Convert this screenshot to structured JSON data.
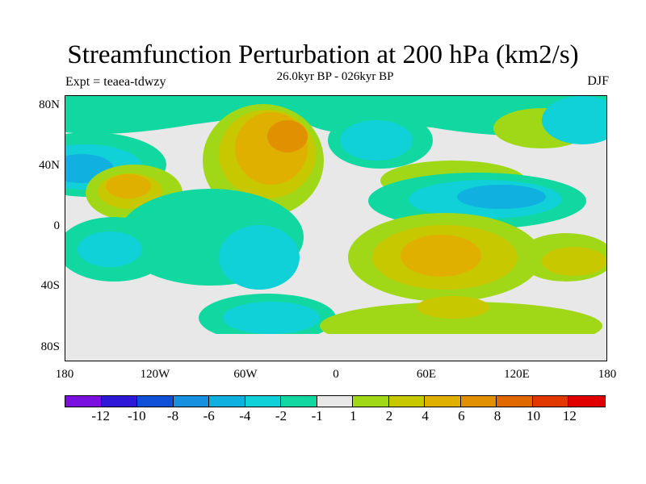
{
  "title": "Streamfunction Perturbation at 200 hPa (km2/s)",
  "subtitle": "26.0kyr BP - 026kyr BP",
  "left_label": "Expt = teaea-tdwzy",
  "right_label": "DJF",
  "lat_ticks": [
    "80N",
    "40N",
    "0",
    "40S",
    "80S"
  ],
  "lon_ticks": [
    "180",
    "120W",
    "60W",
    "0",
    "60E",
    "120E",
    "180"
  ],
  "colorbar": {
    "colors": [
      "#7a10e0",
      "#3018d8",
      "#1050d8",
      "#1890e0",
      "#10b0e0",
      "#10d0d8",
      "#10d8a0",
      "#e8e8e8",
      "#a0d818",
      "#c8c800",
      "#e0b000",
      "#e09000",
      "#e06800",
      "#e03800",
      "#e00000"
    ],
    "labels": [
      "-12",
      "-10",
      "-8",
      "-6",
      "-4",
      "-2",
      "-1",
      "1",
      "2",
      "4",
      "6",
      "8",
      "10",
      "12"
    ]
  }
}
